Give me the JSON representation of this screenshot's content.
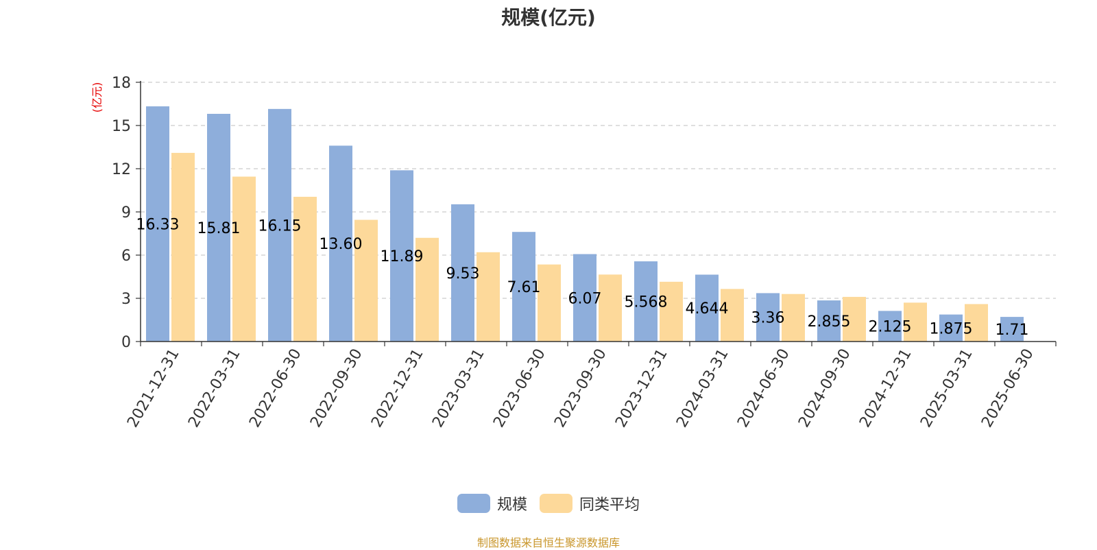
{
  "chart_data": {
    "type": "bar",
    "title": "规模(亿元)",
    "ylabel": "(亿元)",
    "xlabel": "",
    "ylim": [
      0,
      18
    ],
    "yticks": [
      0,
      3,
      6,
      9,
      12,
      15,
      18
    ],
    "grid": true,
    "legend_position": "bottom",
    "categories": [
      "2021-12-31",
      "2022-03-31",
      "2022-06-30",
      "2022-09-30",
      "2022-12-31",
      "2023-03-31",
      "2023-06-30",
      "2023-09-30",
      "2023-12-31",
      "2024-03-31",
      "2024-06-30",
      "2024-09-30",
      "2024-12-31",
      "2025-03-31",
      "2025-06-30"
    ],
    "series": [
      {
        "name": "规模",
        "color": "#8eaedb",
        "values": [
          16.33,
          15.81,
          16.15,
          13.6,
          11.89,
          9.53,
          7.61,
          6.07,
          5.568,
          4.644,
          3.36,
          2.855,
          2.125,
          1.875,
          1.71
        ],
        "data_labels": [
          "16.33",
          "15.81",
          "16.15",
          "13.60",
          "11.89",
          "9.53",
          "7.61",
          "6.07",
          "5.568",
          "4.644",
          "3.36",
          "2.855",
          "2.125",
          "1.875",
          "1.71"
        ]
      },
      {
        "name": "同类平均",
        "color": "#fdd99a",
        "values": [
          13.1,
          11.45,
          10.05,
          8.45,
          7.2,
          6.2,
          5.35,
          4.65,
          4.15,
          3.65,
          3.3,
          3.1,
          2.7,
          2.6,
          null
        ]
      }
    ]
  },
  "source_note": "制图数据来自恒生聚源数据库"
}
